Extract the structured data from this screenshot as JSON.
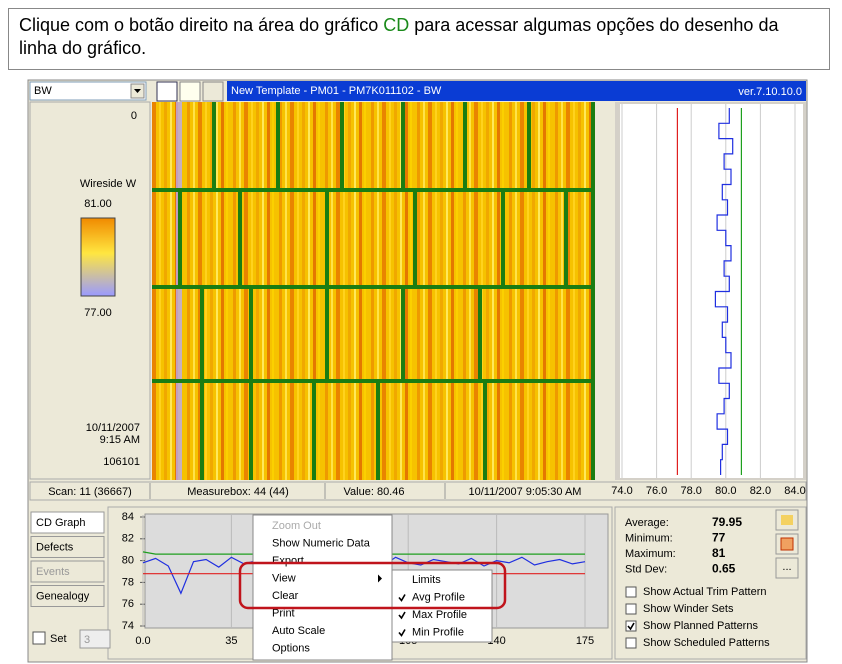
{
  "instruction": {
    "before": "Clique com o botão direito na área do gráfico ",
    "highlight": "CD",
    "after": " para acessar algumas opções do desenho da linha do gráfico."
  },
  "app": {
    "selector": "BW",
    "title": "New Template - PM01 - PM7K011102 - BW",
    "version": "ver.7.10.10.0",
    "map_labels": {
      "top": "0",
      "measure": "Wireside W",
      "max": "81.00",
      "min": "77.00",
      "date": "10/11/2007",
      "time": "9:15 AM",
      "reel": "106101"
    },
    "status": [
      "Scan: 11 (36667)",
      "Measurebox: 44 (44)",
      "Value: 80.46",
      "10/11/2007 9:05:30 AM"
    ],
    "tabs": [
      "CD Graph",
      "Defects",
      "Events",
      "Genealogy"
    ],
    "set_label": "Set",
    "set_value": "3",
    "stats": [
      {
        "label": "Average:",
        "value": "79.95"
      },
      {
        "label": "Minimum:",
        "value": "77"
      },
      {
        "label": "Maximum:",
        "value": "81"
      },
      {
        "label": "Std Dev:",
        "value": "0.65"
      }
    ],
    "more_button": "...",
    "options": [
      {
        "label": "Show Actual Trim Pattern",
        "checked": false
      },
      {
        "label": "Show Winder Sets",
        "checked": false
      },
      {
        "label": "Show Planned Patterns",
        "checked": true
      },
      {
        "label": "Show Scheduled Patterns",
        "checked": false
      }
    ],
    "menu": [
      {
        "label": "Zoom Out",
        "disabled": true
      },
      {
        "label": "Show Numeric Data"
      },
      {
        "label": "Export"
      },
      {
        "label": "View",
        "submenu": true
      },
      {
        "label": "Clear"
      },
      {
        "label": "Print"
      },
      {
        "label": "Auto Scale"
      },
      {
        "label": "Options"
      }
    ],
    "submenu": [
      {
        "label": "Limits",
        "checked": false
      },
      {
        "label": "Avg Profile",
        "checked": true
      },
      {
        "label": "Max Profile",
        "checked": true
      },
      {
        "label": "Min Profile",
        "checked": true
      }
    ]
  },
  "chart_data": [
    {
      "type": "line",
      "x": [
        0,
        5,
        10,
        15,
        20,
        25,
        30,
        35,
        40,
        45,
        50,
        55,
        60,
        65,
        70,
        75,
        80,
        85,
        90,
        95,
        100,
        105,
        110,
        115,
        120,
        125,
        130,
        135,
        140,
        145,
        150,
        155,
        160,
        165,
        170,
        175
      ],
      "xlim": [
        0,
        175
      ],
      "xticks": [
        {
          "value": 0,
          "label": "0.0"
        },
        35,
        70,
        105,
        140,
        175
      ],
      "ylim": [
        74,
        84
      ],
      "yticks": [
        74,
        76,
        78,
        80,
        82,
        84
      ],
      "grid": true,
      "series": [
        {
          "color": "#1e9e1e",
          "values": [
            80.8,
            80.6,
            80.6,
            80.6,
            80.6,
            80.6,
            80.6,
            80.6,
            80.6,
            80.6,
            80.6,
            80.6,
            80.6,
            80.6,
            80.6,
            80.6,
            80.6,
            80.6,
            80.6,
            80.6,
            80.6,
            80.6,
            80.6,
            80.6,
            80.6,
            80.6,
            80.6,
            80.6,
            80.6,
            80.6,
            80.6,
            80.6,
            80.6,
            80.6,
            80.6,
            80.6
          ]
        },
        {
          "color": "#1f2fe0",
          "values": [
            79.8,
            80.2,
            79.5,
            77.0,
            79.9,
            80.1,
            79.4,
            80.3,
            79.7,
            80.0,
            79.6,
            80.4,
            79.5,
            80.1,
            79.9,
            79.6,
            80.2,
            79.7,
            80.0,
            79.5,
            80.3,
            79.8,
            79.6,
            80.1,
            79.9,
            79.7,
            80.2,
            79.5,
            80.0,
            79.8,
            80.3,
            79.6,
            79.9,
            80.1,
            79.7,
            79.9
          ]
        },
        {
          "color": "#e02020",
          "values": [
            78.8,
            78.8,
            78.8,
            78.8,
            78.8,
            78.8,
            78.8,
            78.8,
            78.8,
            78.8,
            78.8,
            78.8,
            78.8,
            78.8,
            78.8,
            78.8,
            78.8,
            78.8,
            78.8,
            78.8,
            78.8,
            78.8,
            78.8,
            78.8,
            78.8,
            78.8,
            78.8,
            78.8,
            78.8,
            78.8,
            78.8,
            78.8,
            78.8,
            78.8,
            78.8,
            78.8
          ]
        }
      ]
    },
    {
      "type": "profile",
      "xlim": [
        74,
        84
      ],
      "xticks": [
        {
          "value": 74,
          "label": "74.0"
        },
        {
          "value": 76,
          "label": "76.0"
        },
        {
          "value": 78,
          "label": "78.0"
        },
        {
          "value": 80,
          "label": "80.0"
        },
        {
          "value": 82,
          "label": "82.0"
        },
        {
          "value": 84,
          "label": "84.0"
        }
      ],
      "grid": true,
      "series": [
        {
          "color": "#e02020",
          "values": [
            77.2,
            77.2,
            77.2,
            77.2,
            77.2,
            77.2,
            77.2,
            77.2,
            77.2,
            77.2,
            77.2,
            77.2,
            77.2,
            77.2,
            77.2,
            77.2,
            77.2,
            77.2,
            77.2,
            77.2,
            77.2,
            77.2,
            77.2,
            77.2
          ]
        },
        {
          "color": "#1ea01e",
          "values": [
            80.9,
            80.9,
            80.9,
            80.9,
            80.9,
            80.9,
            80.9,
            80.9,
            80.9,
            80.9,
            80.9,
            80.9,
            80.9,
            80.9,
            80.9,
            80.9,
            80.9,
            80.9,
            80.9,
            80.9,
            80.9,
            80.9,
            80.9,
            80.9
          ]
        },
        {
          "color": "#1f2fe0",
          "values": [
            80.2,
            79.6,
            80.4,
            79.9,
            80.3,
            79.8,
            80.1,
            79.5,
            80.0,
            80.3,
            79.9,
            80.2,
            79.4,
            80.1,
            79.8,
            80.0,
            80.3,
            79.6,
            80.2,
            79.9,
            79.5,
            80.1,
            79.8,
            79.7
          ]
        }
      ]
    }
  ]
}
